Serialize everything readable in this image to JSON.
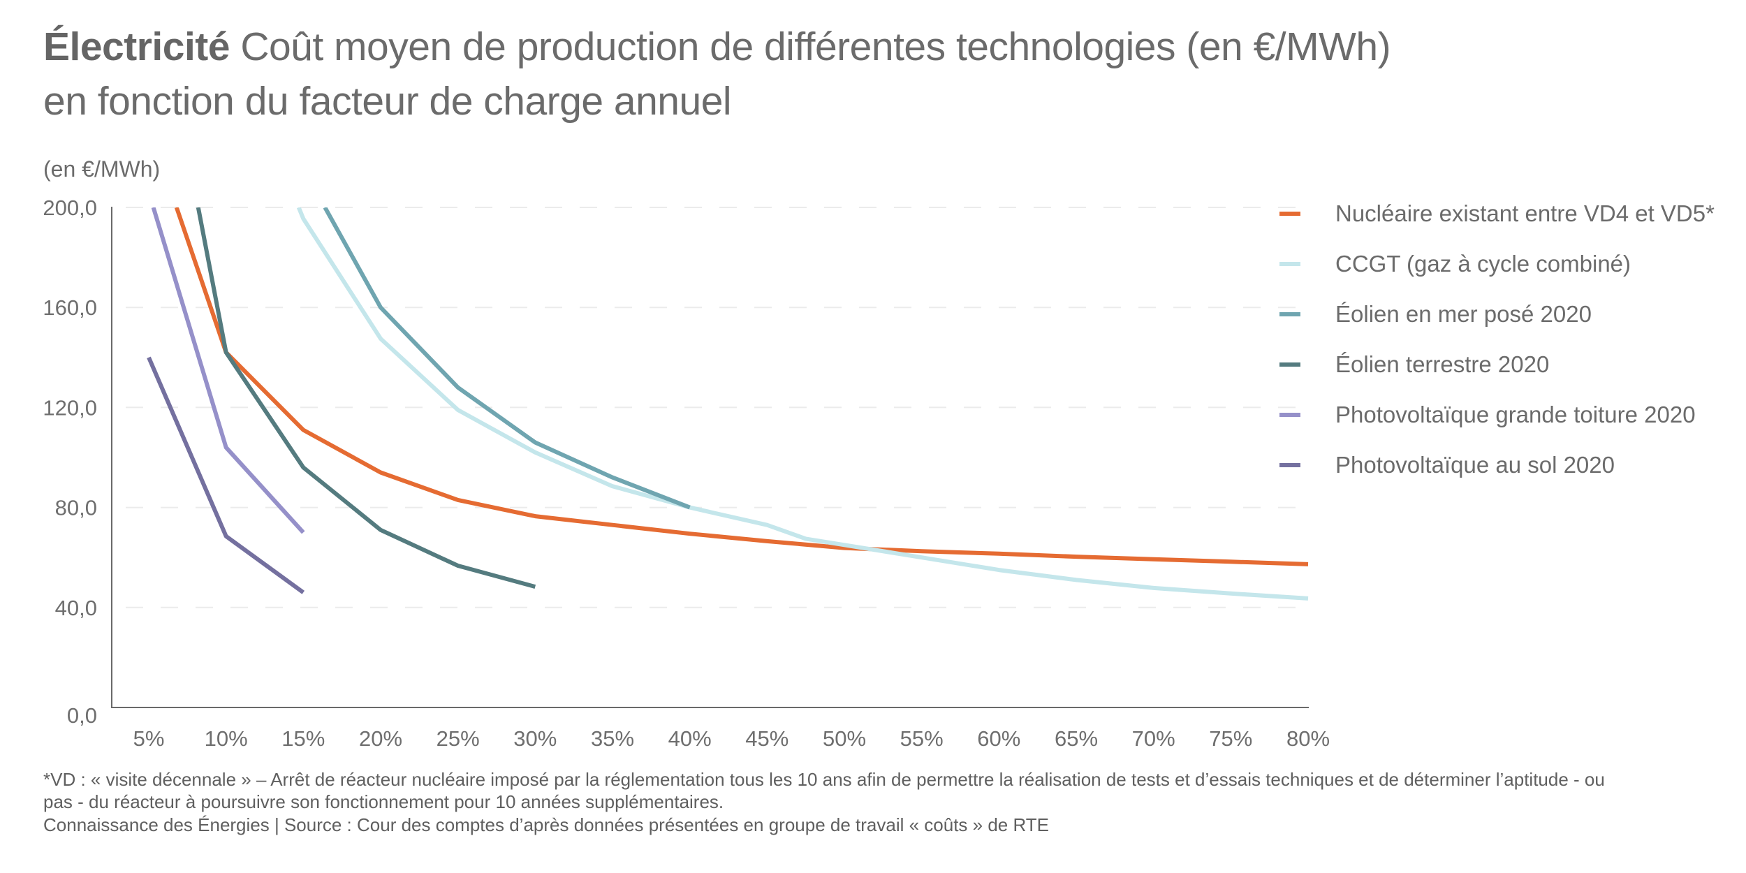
{
  "header": {
    "title_bold": "Électricité",
    "title_rest": " Coût moyen de production de différentes technologies (en €/MWh)",
    "title_line2": "en fonction du facteur de charge annuel"
  },
  "chart_data": {
    "type": "line",
    "title": "Électricité Coût moyen de production de différentes technologies (en €/MWh) en fonction du facteur de charge annuel",
    "xlabel": "Facteur de charge annuel",
    "ylabel": "(en €/MWh)",
    "x_ticks": [
      "5%",
      "10%",
      "15%",
      "20%",
      "25%",
      "30%",
      "35%",
      "40%",
      "45%",
      "50%",
      "55%",
      "60%",
      "65%",
      "70%",
      "75%",
      "80%"
    ],
    "y_ticks": [
      "0,0",
      "40,0",
      "80,0",
      "120,0",
      "160,0",
      "200,0"
    ],
    "xlim": [
      5,
      80
    ],
    "ylim": [
      0,
      200
    ],
    "grid": "horizontal dashed",
    "legend_position": "right",
    "series": [
      {
        "name": "Nucléaire existant entre VD4 et VD5*",
        "color": "#e56b32",
        "x": [
          6.8,
          10,
          15,
          20,
          25,
          30,
          35,
          40,
          45,
          50,
          55,
          60,
          65,
          70,
          75,
          80
        ],
        "y": [
          200,
          142,
          111,
          94,
          83,
          76.5,
          73,
          69.5,
          66.5,
          63.8,
          62.5,
          61.5,
          60.3,
          59.3,
          58.3,
          57.3
        ]
      },
      {
        "name": "CCGT (gaz à cycle combiné)",
        "color": "#c4e6eb",
        "x": [
          14.7,
          15,
          20,
          25,
          30,
          35,
          40,
          45,
          47.5,
          50,
          55,
          60,
          65,
          70,
          75,
          80
        ],
        "y": [
          200,
          195.5,
          147.5,
          119,
          102,
          88.5,
          80,
          73,
          67.5,
          65,
          60,
          55,
          51,
          47.8,
          45.6,
          43.6
        ]
      },
      {
        "name": "Éolien en mer posé 2020",
        "color": "#6fa5b0",
        "x": [
          16.4,
          20,
          25,
          30,
          35,
          40
        ],
        "y": [
          200,
          160,
          128,
          106,
          92,
          80
        ]
      },
      {
        "name": "Éolien terrestre 2020",
        "color": "#547b7f",
        "x": [
          8.2,
          10,
          15,
          20,
          25,
          30
        ],
        "y": [
          200,
          142,
          96,
          71,
          56.7,
          48.3
        ]
      },
      {
        "name": "Photovoltaïque grande toiture 2020",
        "color": "#9590c9",
        "x": [
          5.3,
          10,
          15
        ],
        "y": [
          200,
          104,
          70
        ]
      },
      {
        "name": "Photovoltaïque au sol 2020",
        "color": "#74709f",
        "x": [
          5,
          10,
          15
        ],
        "y": [
          140,
          68.5,
          46
        ]
      }
    ]
  },
  "footer": {
    "footnote_line1": "*VD : « visite décennale » – Arrêt de réacteur nucléaire imposé par la réglementation tous les 10 ans afin de permettre la réalisation de tests et d’essais techniques et de déterminer l’aptitude - ou",
    "footnote_line2": "pas - du réacteur à poursuivre son fonctionnement pour 10 années supplémentaires.",
    "source": "Connaissance des Énergies | Source : Cour des comptes d’après données présentées en groupe de travail « coûts » de RTE"
  }
}
